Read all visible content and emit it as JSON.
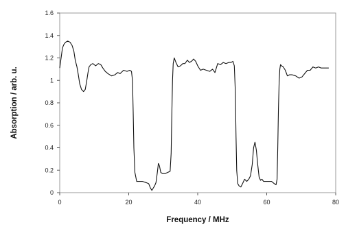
{
  "chart_data": {
    "type": "line",
    "title": "",
    "xlabel": "Frequency / MHz",
    "ylabel": "Absorption / arb. u.",
    "xlim": [
      0,
      80
    ],
    "ylim": [
      0,
      1.6
    ],
    "x_ticks": [
      "0",
      "20",
      "40",
      "60",
      "80"
    ],
    "y_ticks": [
      "0",
      "0.2",
      "0.4",
      "0.6",
      "0.8",
      "1",
      "1.2",
      "1.4",
      "1.6"
    ],
    "grid": false,
    "legend": "none",
    "line_color": "#111111",
    "series": [
      {
        "x": [
          0,
          0.4,
          0.8,
          1.2,
          1.7,
          2.3,
          3.0,
          3.6,
          4.1,
          4.5,
          5.0,
          5.4,
          5.8,
          6.3,
          6.9,
          7.4,
          7.8,
          8.2,
          8.5,
          9.0,
          9.6,
          10.4,
          11.2,
          11.9,
          12.5,
          13.2,
          14.0,
          15.0,
          16.0,
          16.8,
          17.5,
          18.5,
          19.5,
          20.3,
          20.8,
          21.1,
          21.3,
          21.5,
          21.8,
          22.3,
          23.0,
          24.0,
          25.0,
          25.8,
          26.3,
          26.7,
          27.1,
          27.5,
          27.9,
          28.3,
          28.6,
          28.9,
          29.3,
          29.8,
          30.5,
          31.3,
          32.0,
          32.3,
          32.5,
          32.7,
          32.9,
          33.2,
          33.7,
          34.3,
          35.0,
          35.7,
          36.3,
          37.0,
          37.6,
          38.2,
          38.8,
          39.4,
          40.0,
          40.8,
          41.6,
          42.5,
          43.5,
          44.3,
          45.0,
          45.8,
          46.6,
          47.4,
          48.2,
          49.0,
          49.7,
          50.2,
          50.6,
          50.9,
          51.1,
          51.3,
          51.6,
          52.0,
          52.5,
          53.0,
          53.6,
          54.2,
          54.8,
          55.3,
          55.8,
          56.2,
          56.6,
          57.0,
          57.4,
          57.8,
          58.2,
          58.6,
          59.1,
          59.8,
          60.6,
          61.4,
          62.2,
          62.7,
          63.0,
          63.2,
          63.4,
          63.6,
          63.8,
          64.0,
          64.3,
          64.8,
          65.4,
          66.0,
          66.6,
          67.4,
          68.4,
          69.4,
          70.2,
          71.0,
          71.8,
          72.6,
          73.4,
          74.2,
          75.0,
          75.8,
          76.6,
          77.4,
          78.0
        ],
        "y": [
          1.11,
          1.2,
          1.29,
          1.32,
          1.34,
          1.35,
          1.34,
          1.31,
          1.26,
          1.18,
          1.12,
          1.05,
          0.97,
          0.92,
          0.9,
          0.92,
          0.99,
          1.07,
          1.12,
          1.14,
          1.15,
          1.13,
          1.15,
          1.14,
          1.11,
          1.08,
          1.06,
          1.04,
          1.05,
          1.07,
          1.06,
          1.09,
          1.08,
          1.09,
          1.08,
          1.0,
          0.72,
          0.4,
          0.18,
          0.1,
          0.1,
          0.1,
          0.09,
          0.08,
          0.04,
          0.02,
          0.04,
          0.06,
          0.09,
          0.18,
          0.26,
          0.24,
          0.18,
          0.17,
          0.17,
          0.18,
          0.19,
          0.35,
          0.7,
          1.0,
          1.15,
          1.2,
          1.16,
          1.12,
          1.13,
          1.15,
          1.15,
          1.18,
          1.16,
          1.17,
          1.19,
          1.17,
          1.13,
          1.09,
          1.1,
          1.09,
          1.08,
          1.1,
          1.07,
          1.15,
          1.14,
          1.16,
          1.15,
          1.16,
          1.16,
          1.17,
          1.13,
          0.9,
          0.5,
          0.2,
          0.08,
          0.06,
          0.05,
          0.08,
          0.12,
          0.1,
          0.12,
          0.15,
          0.25,
          0.4,
          0.45,
          0.38,
          0.25,
          0.14,
          0.11,
          0.12,
          0.1,
          0.1,
          0.1,
          0.1,
          0.08,
          0.07,
          0.12,
          0.4,
          0.75,
          0.98,
          1.1,
          1.14,
          1.13,
          1.12,
          1.09,
          1.04,
          1.05,
          1.05,
          1.04,
          1.02,
          1.03,
          1.06,
          1.09,
          1.09,
          1.12,
          1.11,
          1.12,
          1.11,
          1.11,
          1.11,
          1.11
        ]
      }
    ]
  }
}
